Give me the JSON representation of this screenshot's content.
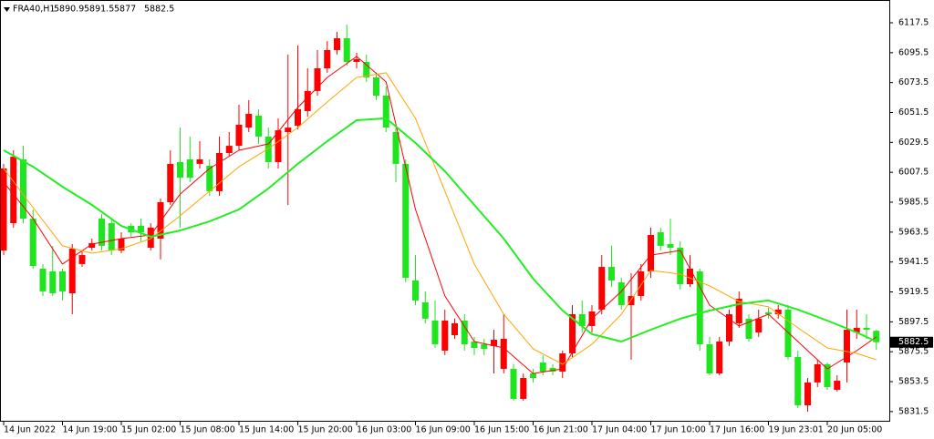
{
  "chart_data": {
    "type": "candlestick",
    "symbol": "FRA40,H1",
    "categories": [
      "14 Jun 2022",
      null,
      null,
      null,
      null,
      null,
      "14 Jun 19:00",
      null,
      null,
      null,
      null,
      null,
      "15 Jun 02:00",
      null,
      null,
      null,
      null,
      null,
      "15 Jun 08:00",
      null,
      null,
      null,
      null,
      null,
      "15 Jun 14:00",
      null,
      null,
      null,
      null,
      null,
      "15 Jun 20:00",
      null,
      null,
      null,
      null,
      null,
      "16 Jun 03:00",
      null,
      null,
      null,
      null,
      null,
      "16 Jun 09:00",
      null,
      null,
      null,
      null,
      null,
      "16 Jun 15:00",
      null,
      null,
      null,
      null,
      null,
      "16 Jun 21:00",
      null,
      null,
      null,
      null,
      null,
      "17 Jun 04:00",
      null,
      null,
      null,
      null,
      null,
      "17 Jun 10:00",
      null,
      null,
      null,
      null,
      null,
      "17 Jun 16:00",
      null,
      null,
      null,
      null,
      null,
      "19 Jun 23:01",
      null,
      null,
      null,
      null,
      null,
      "20 Jun 05:00",
      null,
      null,
      null,
      null,
      null
    ],
    "open": [
      5950.0,
      5970.1,
      6017.0,
      5973.4,
      5936.6,
      5934.6,
      5934.6,
      5918.5,
      5940.0,
      5952.0,
      5973.4,
      5970.1,
      5950.0,
      5968.1,
      5968.1,
      5952.0,
      5958.7,
      5985.5,
      6015.0,
      6017.0,
      6013.7,
      6012.3,
      5993.6,
      6021.7,
      6027.0,
      6040.4,
      6049.2,
      6033.8,
      6015.0,
      6037.1,
      6041.8,
      6052.5,
      6067.3,
      6084.0,
      6097.4,
      6106.1,
      6088.7,
      6088.7,
      6077.3,
      6063.9,
      6037.1,
      6013.7,
      5927.9,
      5911.8,
      5898.4,
      5876.3,
      5887.7,
      5898.4,
      5883.0,
      5881.0,
      5879.7,
      5862.9,
      5862.9,
      5840.8,
      5859.5,
      5867.6,
      5863.6,
      5860.9,
      5874.3,
      5903.1,
      5894.4,
      5906.5,
      5937.9,
      5926.6,
      5909.8,
      5916.5,
      5934.6,
      5963.4,
      5954.7,
      5952.0,
      5925.2,
      5934.6,
      5881.0,
      5859.5,
      5883.0,
      5896.4,
      5899.8,
      5889.7,
      5904.4,
      5903.1,
      5906.5,
      5871.6,
      5836.1,
      5852.9,
      5866.3,
      5847.5,
      5867.6,
      5889.7,
      5893.1,
      5890.9
    ],
    "close": [
      6010.3,
      6019.0,
      5973.4,
      5938.6,
      5919.9,
      5918.5,
      5919.9,
      5951.3,
      5946.6,
      5955.4,
      5953.4,
      5950.0,
      5958.7,
      5963.4,
      5963.4,
      5966.8,
      5985.5,
      6013.7,
      6003.6,
      6003.6,
      6017.0,
      5993.6,
      6021.7,
      6027.0,
      6042.5,
      6050.5,
      6033.8,
      6015.0,
      6038.4,
      6040.4,
      6053.9,
      6067.3,
      6084.0,
      6097.4,
      6106.1,
      6088.7,
      6090.7,
      6077.3,
      6063.9,
      6040.4,
      6013.7,
      5929.9,
      5913.2,
      5899.8,
      5881.0,
      5898.4,
      5896.4,
      5881.0,
      5878.3,
      5877.6,
      5884.3,
      5885.0,
      5840.8,
      5856.2,
      5856.2,
      5860.9,
      5860.9,
      5874.3,
      5903.1,
      5894.4,
      5905.1,
      5937.9,
      5927.9,
      5909.8,
      5916.5,
      5934.6,
      5961.4,
      5953.4,
      5952.0,
      5925.2,
      5936.6,
      5881.0,
      5859.5,
      5883.0,
      5903.1,
      5914.5,
      5885.0,
      5899.8,
      5903.1,
      5906.5,
      5871.6,
      5836.1,
      5852.9,
      5866.3,
      5849.5,
      5854.2,
      5891.7,
      5893.1,
      5891.7,
      5882.5
    ],
    "high": [
      6013.7,
      6023.7,
      6027.0,
      5980.1,
      5940.0,
      5953.4,
      5936.6,
      5954.7,
      5950.0,
      5958.7,
      5976.8,
      5973.4,
      5963.4,
      5970.1,
      5973.4,
      5970.1,
      5988.2,
      6023.7,
      6040.4,
      6033.8,
      6030.4,
      6017.0,
      6033.8,
      6037.1,
      6057.2,
      6060.6,
      6053.9,
      6040.4,
      6047.2,
      6094.1,
      6100.8,
      6084.0,
      6097.4,
      6104.1,
      6110.8,
      6116.2,
      6095.4,
      6094.1,
      6080.7,
      6070.6,
      6040.4,
      6017.0,
      5946.6,
      5919.9,
      5913.2,
      5906.5,
      5899.8,
      5903.1,
      5886.4,
      5885.0,
      5891.7,
      5903.1,
      5866.3,
      5859.5,
      5862.9,
      5872.9,
      5866.3,
      5876.3,
      5909.8,
      5913.2,
      5909.8,
      5946.6,
      5953.4,
      5929.9,
      5933.3,
      5940.0,
      5966.8,
      5966.8,
      5973.4,
      5956.7,
      5946.6,
      5936.6,
      5886.4,
      5886.4,
      5906.5,
      5919.9,
      5903.1,
      5906.5,
      5907.8,
      5909.8,
      5909.8,
      5876.3,
      5856.2,
      5869.6,
      5867.6,
      5858.2,
      5906.5,
      5906.5,
      5903.1,
      5891.5
    ],
    "low": [
      5946.6,
      5966.8,
      5970.1,
      5936.6,
      5916.5,
      5916.5,
      5913.2,
      5903.1,
      5937.9,
      5950.0,
      5950.0,
      5946.6,
      5948.0,
      5960.1,
      5956.7,
      5950.0,
      5943.3,
      5983.5,
      5966.8,
      6000.3,
      6010.3,
      5990.2,
      5990.2,
      6019.0,
      6023.7,
      6037.1,
      6028.4,
      6010.3,
      6010.3,
      5983.5,
      6039.1,
      6048.5,
      6063.9,
      6080.7,
      6094.1,
      6086.0,
      6084.0,
      6074.0,
      6060.6,
      6037.1,
      6000.3,
      5926.6,
      5909.8,
      5896.4,
      5878.3,
      5873.0,
      5885.0,
      5876.3,
      5873.0,
      5873.0,
      5859.5,
      5859.5,
      5839.5,
      5839.5,
      5852.9,
      5858.2,
      5858.2,
      5856.2,
      5871.6,
      5889.7,
      5889.7,
      5903.1,
      5923.2,
      5906.5,
      5869.6,
      5913.2,
      5929.9,
      5950.0,
      5946.6,
      5921.2,
      5923.2,
      5876.3,
      5858.2,
      5858.2,
      5879.7,
      5893.1,
      5883.0,
      5886.4,
      5899.8,
      5899.8,
      5869.6,
      5834.1,
      5831.4,
      5849.5,
      5847.5,
      5846.2,
      5852.9,
      5885.0,
      5885.0,
      5877.0
    ],
    "up_color": "#ff0000",
    "down_color": "#1fe51f",
    "lines": [
      {
        "color": "#ff0000",
        "x": [
          0,
          3,
          6,
          9,
          12,
          15,
          18,
          21,
          24,
          27,
          30,
          33,
          36,
          39,
          42,
          45,
          48,
          51,
          54,
          57,
          60,
          63,
          66,
          69,
          72,
          75,
          78,
          81,
          84,
          87,
          89
        ],
        "values": [
          6000.3,
          5973.4,
          5940.0,
          5954.7,
          5958.7,
          5961.4,
          5991.5,
          6010.3,
          6023.7,
          6028.4,
          6055.2,
          6077.3,
          6092.7,
          6074.0,
          5980.2,
          5916.5,
          5883.0,
          5878.3,
          5859.5,
          5862.9,
          5899.8,
          5919.9,
          5946.6,
          5950.0,
          5909.8,
          5894.4,
          5903.1,
          5883.0,
          5862.9,
          5876.3,
          5886.4
        ]
      },
      {
        "color": "#ffa500",
        "x": [
          0,
          3,
          6,
          9,
          12,
          15,
          18,
          21,
          24,
          27,
          30,
          33,
          36,
          39,
          42,
          45,
          48,
          51,
          54,
          57,
          60,
          63,
          66,
          69,
          72,
          75,
          78,
          81,
          84,
          87,
          89
        ],
        "values": [
          6010.3,
          5981.5,
          5953.4,
          5948.0,
          5951.3,
          5958.7,
          5975.5,
          5993.6,
          6011.6,
          6025.0,
          6040.4,
          6059.2,
          6077.3,
          6080.7,
          6047.2,
          5993.6,
          5940.0,
          5903.1,
          5877.6,
          5866.3,
          5881.0,
          5903.1,
          5935.3,
          5932.6,
          5923.9,
          5912.5,
          5908.5,
          5893.1,
          5878.3,
          5874.3,
          5869.6
        ]
      },
      {
        "color": "#22ee22",
        "x": [
          0,
          3,
          6,
          9,
          12,
          15,
          18,
          21,
          24,
          27,
          30,
          33,
          36,
          39,
          42,
          45,
          48,
          51,
          54,
          57,
          60,
          63,
          66,
          69,
          72,
          75,
          78,
          81,
          84,
          87,
          89
        ],
        "values": [
          6023.7,
          6011.6,
          5996.9,
          5983.5,
          5968.1,
          5960.1,
          5964.7,
          5971.4,
          5980.2,
          5995.6,
          6013.7,
          6030.4,
          6045.8,
          6047.2,
          6029.1,
          6008.3,
          5983.5,
          5958.7,
          5929.2,
          5905.8,
          5888.4,
          5883.0,
          5891.7,
          5899.8,
          5905.8,
          5910.5,
          5913.2,
          5906.5,
          5898.4,
          5889.7,
          5883.0
        ]
      }
    ],
    "ylim": [
      5824.7,
      6134.25
    ],
    "yticks": [
      5831.5,
      5853.5,
      5875.5,
      5897.5,
      5919.5,
      5941.5,
      5963.5,
      5985.5,
      6007.5,
      6029.5,
      6051.5,
      6073.5,
      6095.5,
      6117.5
    ]
  }
}
